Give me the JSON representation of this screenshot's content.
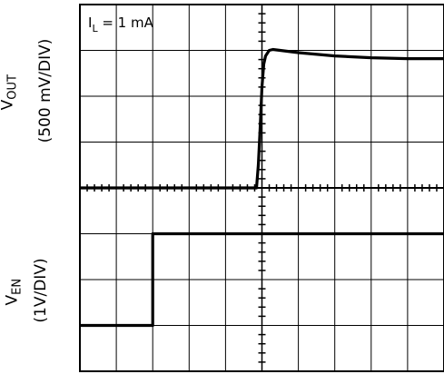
{
  "annotation": {
    "prefix": "I",
    "sub": "L",
    "rest": " = 1 mA"
  },
  "labels": {
    "vout_main": "V",
    "vout_sub": "OUT",
    "vout_scale": "(500 mV/DIV)",
    "ven_main": "V",
    "ven_sub": "EN",
    "ven_scale": "(1V/DIV)"
  },
  "chart_data": {
    "type": "line",
    "title": "",
    "grid": true,
    "divisions": {
      "x": 10,
      "y": 8
    },
    "x_unit": "div",
    "series": [
      {
        "name": "VOUT",
        "scale": "500 mV/DIV",
        "x": [
          0,
          4.85,
          4.9,
          4.95,
          5.0,
          5.05,
          5.1,
          5.2,
          5.3,
          5.5,
          6.0,
          7.0,
          8.0,
          9.0,
          10.0
        ],
        "y": [
          0,
          0,
          0.5,
          1.3,
          2.2,
          2.7,
          2.88,
          3.0,
          3.02,
          3.0,
          2.95,
          2.88,
          2.84,
          2.82,
          2.82
        ]
      },
      {
        "name": "VEN",
        "scale": "1V/DIV",
        "x": [
          0,
          2.0,
          2.0,
          10.0
        ],
        "y": [
          0,
          0,
          2.0,
          2.0
        ]
      }
    ]
  }
}
